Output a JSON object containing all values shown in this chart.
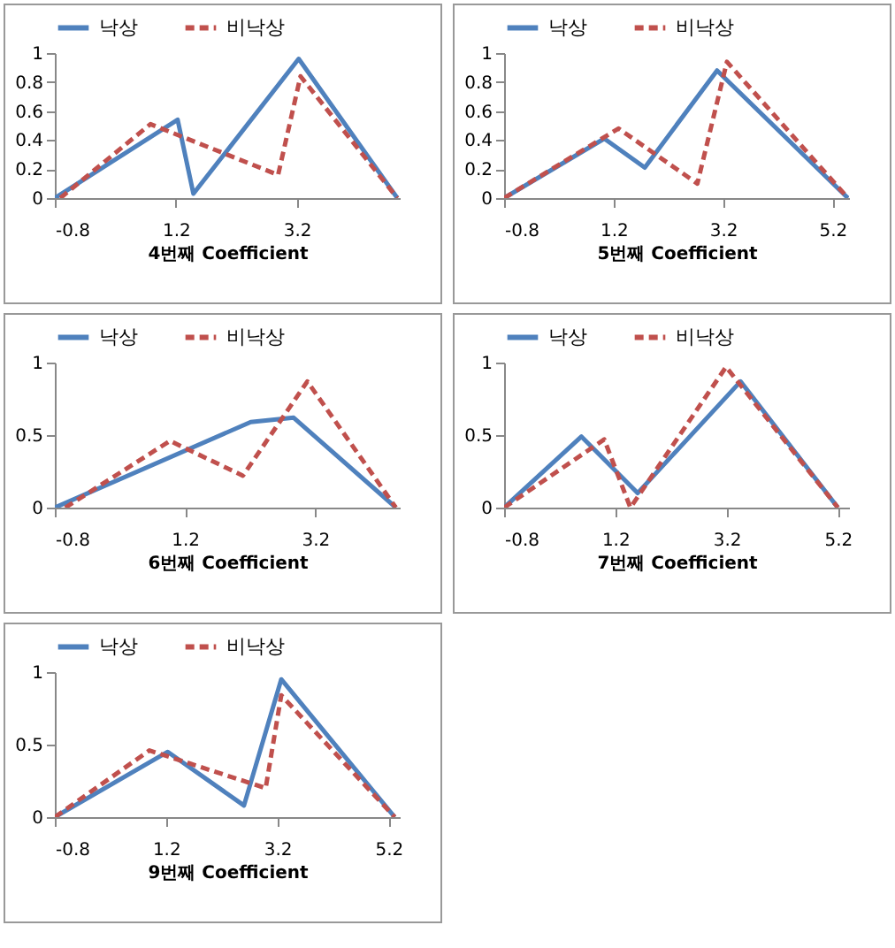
{
  "chart_data": [
    {
      "type": "line",
      "xlabel": "4번째 Coefficient",
      "xlim": [
        -0.8,
        4.9
      ],
      "xticks": [
        -0.8,
        1.2,
        3.2
      ],
      "ylim": [
        0,
        1
      ],
      "yticks": [
        0,
        0.2,
        0.4,
        0.6,
        0.8,
        1
      ],
      "legend": "top",
      "series": [
        {
          "name": "낙상",
          "color": "#4f81bd",
          "line_style": "solid",
          "x": [
            -0.8,
            1.23,
            1.49,
            3.23,
            4.86
          ],
          "values": [
            0,
            0.54,
            0.03,
            0.96,
            0
          ]
        },
        {
          "name": "비낙상",
          "color": "#c0504d",
          "line_style": "dashed",
          "x": [
            -0.71,
            0.78,
            2.89,
            3.26,
            4.86
          ],
          "values": [
            0,
            0.51,
            0.16,
            0.84,
            0
          ]
        }
      ]
    },
    {
      "type": "line",
      "xlabel": "5번째 Coefficient",
      "xlim": [
        -0.8,
        5.5
      ],
      "xticks": [
        -0.8,
        1.2,
        3.2,
        5.2
      ],
      "ylim": [
        0,
        1
      ],
      "yticks": [
        0,
        0.2,
        0.4,
        0.6,
        0.8,
        1
      ],
      "legend": "top",
      "series": [
        {
          "name": "낙상",
          "color": "#4f81bd",
          "line_style": "solid",
          "x": [
            -0.8,
            1.03,
            1.77,
            3.09,
            5.48
          ],
          "values": [
            0,
            0.41,
            0.21,
            0.88,
            0
          ]
        },
        {
          "name": "비낙상",
          "color": "#c0504d",
          "line_style": "dashed",
          "x": [
            -0.8,
            1.29,
            2.73,
            3.27,
            5.48
          ],
          "values": [
            0,
            0.48,
            0.1,
            0.94,
            0
          ]
        }
      ]
    },
    {
      "type": "line",
      "xlabel": "6번째 Coefficient",
      "xlim": [
        -0.8,
        4.5
      ],
      "xticks": [
        -0.8,
        1.2,
        3.2
      ],
      "ylim": [
        0,
        1
      ],
      "yticks": [
        0,
        0.5,
        1
      ],
      "legend": "top",
      "series": [
        {
          "name": "낙상",
          "color": "#4f81bd",
          "line_style": "solid",
          "x": [
            -0.8,
            2.21,
            2.87,
            4.44
          ],
          "values": [
            0,
            0.59,
            0.62,
            0
          ]
        },
        {
          "name": "비낙상",
          "color": "#c0504d",
          "line_style": "dashed",
          "x": [
            -0.64,
            0.97,
            2.09,
            3.08,
            4.44
          ],
          "values": [
            0,
            0.46,
            0.22,
            0.87,
            0
          ]
        }
      ]
    },
    {
      "type": "line",
      "xlabel": "7번째 Coefficient",
      "xlim": [
        -0.8,
        5.4
      ],
      "xticks": [
        -0.8,
        1.2,
        3.2,
        5.2
      ],
      "ylim": [
        0,
        1
      ],
      "yticks": [
        0,
        0.5,
        1
      ],
      "legend": "top",
      "series": [
        {
          "name": "낙상",
          "color": "#4f81bd",
          "line_style": "solid",
          "x": [
            -0.8,
            0.59,
            1.6,
            3.45,
            5.2
          ],
          "values": [
            0,
            0.49,
            0.1,
            0.87,
            0
          ]
        },
        {
          "name": "비낙상",
          "color": "#c0504d",
          "line_style": "dashed",
          "x": [
            -0.8,
            1.0,
            1.47,
            3.19,
            5.2
          ],
          "values": [
            0,
            0.47,
            0,
            0.97,
            0
          ]
        }
      ]
    },
    {
      "type": "line",
      "xlabel": "9번째 Coefficient",
      "xlim": [
        -0.8,
        5.4
      ],
      "xticks": [
        -0.8,
        1.2,
        3.2,
        5.2
      ],
      "ylim": [
        0,
        1
      ],
      "yticks": [
        0,
        0.5,
        1
      ],
      "legend": "top",
      "series": [
        {
          "name": "낙상",
          "color": "#4f81bd",
          "line_style": "solid",
          "x": [
            -0.8,
            1.23,
            2.6,
            3.27,
            5.31
          ],
          "values": [
            0,
            0.45,
            0.08,
            0.95,
            0
          ]
        },
        {
          "name": "비낙상",
          "color": "#c0504d",
          "line_style": "dashed",
          "x": [
            -0.8,
            0.9,
            2.99,
            3.27,
            5.31
          ],
          "values": [
            0,
            0.46,
            0.2,
            0.84,
            0
          ]
        }
      ]
    }
  ]
}
